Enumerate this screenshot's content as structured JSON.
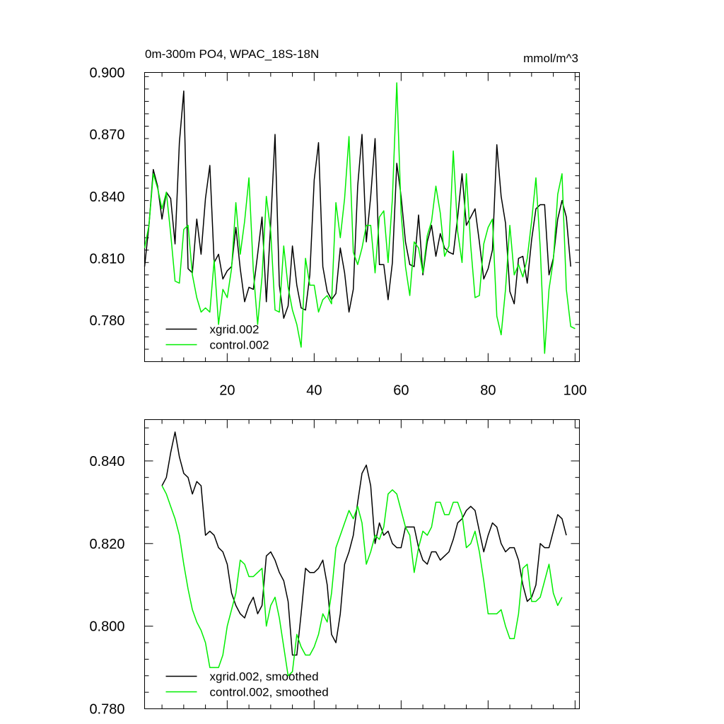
{
  "colors": {
    "xgrid": "#000000",
    "control": "#00ee00"
  },
  "chart_data": [
    {
      "type": "line",
      "title_left": "0m-300m PO4, WPAC_18S-18N",
      "title_right": "mmol/m^3",
      "xlim": [
        1,
        101
      ],
      "ylim": [
        0.76,
        0.9
      ],
      "x_ticks": [
        20,
        40,
        60,
        80,
        100
      ],
      "x_tick_labels": [
        "20",
        "40",
        "60",
        "80",
        "100"
      ],
      "y_ticks": [
        0.78,
        0.81,
        0.84,
        0.87,
        0.9
      ],
      "y_tick_labels": [
        "0.780",
        "0.810",
        "0.840",
        "0.870",
        "0.900"
      ],
      "legend_position": "bottom-left",
      "x_start": 1,
      "series": [
        {
          "name": "xgrid.002",
          "color": "#000000",
          "values": [
            0.806,
            0.826,
            0.853,
            0.845,
            0.829,
            0.842,
            0.839,
            0.817,
            0.866,
            0.891,
            0.805,
            0.803,
            0.829,
            0.812,
            0.839,
            0.855,
            0.808,
            0.812,
            0.8,
            0.804,
            0.806,
            0.825,
            0.805,
            0.789,
            0.796,
            0.795,
            0.812,
            0.83,
            0.789,
            0.827,
            0.87,
            0.797,
            0.781,
            0.787,
            0.816,
            0.797,
            0.786,
            0.785,
            0.802,
            0.848,
            0.866,
            0.806,
            0.794,
            0.79,
            0.793,
            0.815,
            0.803,
            0.784,
            0.795,
            0.845,
            0.87,
            0.818,
            0.84,
            0.868,
            0.807,
            0.807,
            0.79,
            0.808,
            0.856,
            0.84,
            0.818,
            0.807,
            0.806,
            0.831,
            0.802,
            0.818,
            0.826,
            0.811,
            0.822,
            0.815,
            0.813,
            0.812,
            0.83,
            0.851,
            0.826,
            0.83,
            0.834,
            0.818,
            0.8,
            0.805,
            0.814,
            0.865,
            0.84,
            0.827,
            0.794,
            0.788,
            0.81,
            0.811,
            0.798,
            0.819,
            0.834,
            0.836,
            0.836,
            0.802,
            0.81,
            0.829,
            0.838,
            0.83,
            0.806
          ]
        },
        {
          "name": "control.002",
          "color": "#00ee00",
          "values": [
            0.815,
            0.826,
            0.851,
            0.844,
            0.834,
            0.842,
            0.822,
            0.799,
            0.798,
            0.824,
            0.826,
            0.802,
            0.791,
            0.784,
            0.786,
            0.784,
            0.809,
            0.778,
            0.795,
            0.791,
            0.805,
            0.837,
            0.812,
            0.828,
            0.849,
            0.804,
            0.778,
            0.801,
            0.84,
            0.823,
            0.785,
            0.784,
            0.816,
            0.796,
            0.785,
            0.778,
            0.767,
            0.81,
            0.797,
            0.797,
            0.784,
            0.79,
            0.792,
            0.788,
            0.837,
            0.82,
            0.839,
            0.869,
            0.813,
            0.807,
            0.815,
            0.826,
            0.826,
            0.803,
            0.83,
            0.833,
            0.808,
            0.839,
            0.895,
            0.832,
            0.806,
            0.792,
            0.818,
            0.815,
            0.803,
            0.821,
            0.828,
            0.845,
            0.832,
            0.811,
            0.816,
            0.862,
            0.823,
            0.808,
            0.851,
            0.816,
            0.791,
            0.792,
            0.817,
            0.825,
            0.829,
            0.782,
            0.773,
            0.795,
            0.826,
            0.802,
            0.807,
            0.801,
            0.81,
            0.828,
            0.849,
            0.815,
            0.764,
            0.795,
            0.809,
            0.841,
            0.851,
            0.795,
            0.777,
            0.776
          ]
        }
      ]
    },
    {
      "type": "line",
      "xlim": [
        1,
        101
      ],
      "ylim": [
        0.78,
        0.85
      ],
      "x_ticks": [
        20,
        40,
        60,
        80,
        100
      ],
      "y_ticks": [
        0.78,
        0.8,
        0.82,
        0.84
      ],
      "y_tick_labels": [
        "0.780",
        "0.800",
        "0.820",
        "0.840"
      ],
      "legend_position": "bottom-left",
      "x_start": 5,
      "series": [
        {
          "name": "xgrid.002, smoothed",
          "color": "#000000",
          "values": [
            0.834,
            0.836,
            0.842,
            0.847,
            0.841,
            0.837,
            0.836,
            0.832,
            0.835,
            0.834,
            0.822,
            0.823,
            0.822,
            0.819,
            0.818,
            0.815,
            0.808,
            0.805,
            0.803,
            0.802,
            0.805,
            0.807,
            0.803,
            0.805,
            0.817,
            0.818,
            0.816,
            0.813,
            0.811,
            0.806,
            0.793,
            0.793,
            0.803,
            0.814,
            0.813,
            0.813,
            0.814,
            0.816,
            0.81,
            0.798,
            0.796,
            0.803,
            0.815,
            0.818,
            0.822,
            0.83,
            0.837,
            0.839,
            0.834,
            0.82,
            0.825,
            0.822,
            0.823,
            0.82,
            0.819,
            0.819,
            0.824,
            0.824,
            0.824,
            0.819,
            0.816,
            0.815,
            0.818,
            0.818,
            0.816,
            0.817,
            0.818,
            0.821,
            0.825,
            0.826,
            0.828,
            0.829,
            0.828,
            0.823,
            0.818,
            0.822,
            0.825,
            0.824,
            0.82,
            0.818,
            0.819,
            0.819,
            0.816,
            0.81,
            0.806,
            0.807,
            0.81,
            0.82,
            0.819,
            0.819,
            0.823,
            0.827,
            0.826,
            0.822
          ]
        },
        {
          "name": "control.002, smoothed",
          "color": "#00ee00",
          "values": [
            0.834,
            0.832,
            0.829,
            0.826,
            0.822,
            0.815,
            0.809,
            0.804,
            0.801,
            0.799,
            0.796,
            0.79,
            0.79,
            0.79,
            0.793,
            0.8,
            0.804,
            0.808,
            0.816,
            0.815,
            0.812,
            0.812,
            0.813,
            0.814,
            0.8,
            0.805,
            0.807,
            0.802,
            0.795,
            0.788,
            0.789,
            0.798,
            0.795,
            0.793,
            0.793,
            0.795,
            0.798,
            0.803,
            0.801,
            0.808,
            0.819,
            0.822,
            0.825,
            0.828,
            0.826,
            0.829,
            0.825,
            0.815,
            0.818,
            0.822,
            0.821,
            0.824,
            0.832,
            0.833,
            0.832,
            0.828,
            0.824,
            0.822,
            0.813,
            0.819,
            0.823,
            0.822,
            0.824,
            0.83,
            0.83,
            0.827,
            0.827,
            0.83,
            0.83,
            0.827,
            0.819,
            0.82,
            0.823,
            0.818,
            0.811,
            0.803,
            0.803,
            0.803,
            0.804,
            0.8,
            0.797,
            0.797,
            0.803,
            0.814,
            0.815,
            0.806,
            0.806,
            0.807,
            0.811,
            0.815,
            0.808,
            0.805,
            0.807
          ]
        }
      ]
    }
  ]
}
